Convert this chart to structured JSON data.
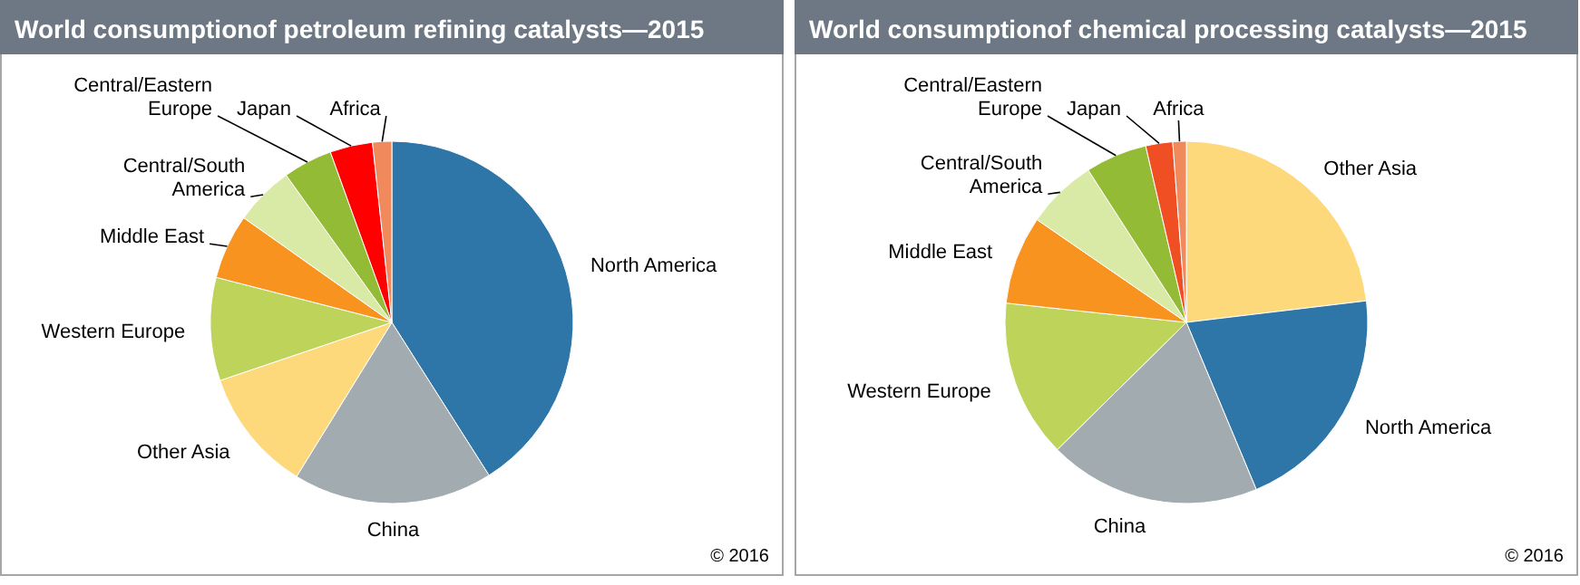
{
  "chart_data": [
    {
      "type": "pie",
      "title": "World consumptionof petroleum refining catalysts—2015",
      "categories": [
        "North America",
        "China",
        "Other Asia",
        "Western Europe",
        "Middle East",
        "Central/South America",
        "Central/Eastern Europe",
        "Japan",
        "Africa"
      ],
      "values": [
        41,
        17.8,
        11,
        9.2,
        5.8,
        5.3,
        4.4,
        3.8,
        1.7
      ],
      "colors": [
        "#2e75a8",
        "#a2abb0",
        "#fdd97c",
        "#bdd35a",
        "#f7931e",
        "#d9eaa6",
        "#94bb35",
        "#fe0000",
        "#f08a5d"
      ],
      "annotations": [
        "© 2016"
      ]
    },
    {
      "type": "pie",
      "title": "World consumptionof chemical processing catalysts—2015",
      "categories": [
        "Other Asia",
        "North America",
        "China",
        "Western Europe",
        "Middle East",
        "Central/South America",
        "Central/Eastern Europe",
        "Japan",
        "Africa"
      ],
      "values": [
        23.1,
        20.6,
        18.9,
        14.1,
        7.9,
        6.3,
        5.5,
        2.4,
        1.2
      ],
      "colors": [
        "#fdd97c",
        "#2e75a8",
        "#a2abb0",
        "#bdd35a",
        "#f7931e",
        "#d9eaa6",
        "#94bb35",
        "#f04f23",
        "#f08a5d"
      ],
      "annotations": [
        "© 2016"
      ]
    }
  ]
}
